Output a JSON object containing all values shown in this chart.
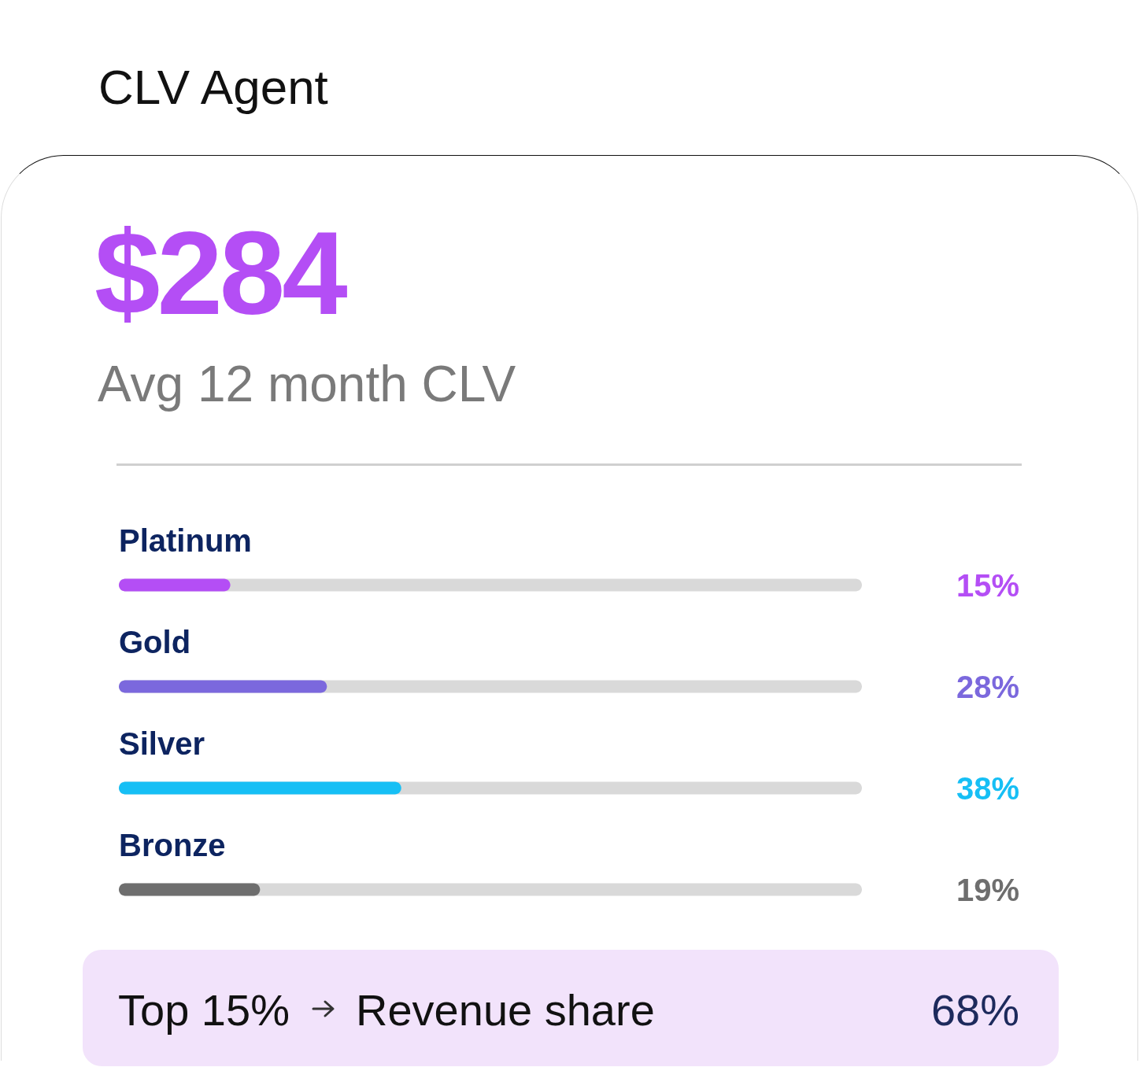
{
  "chart_data": {
    "type": "bar",
    "orientation": "horizontal",
    "title": "CLV Agent",
    "annotations": [
      "$284",
      "Avg 12 month CLV",
      "Top 15%",
      "Revenue share",
      "68%"
    ],
    "categories": [
      "Platinum",
      "Gold",
      "Silver",
      "Bronze"
    ],
    "values": [
      15,
      28,
      38,
      19
    ],
    "value_labels": [
      "15%",
      "28%",
      "38%",
      "19%"
    ],
    "colors": [
      "#b44ef5",
      "#7b68dd",
      "#16bff5",
      "#6e6e6e"
    ],
    "xlim": [
      0,
      100
    ],
    "tick_labels": false
  }
}
